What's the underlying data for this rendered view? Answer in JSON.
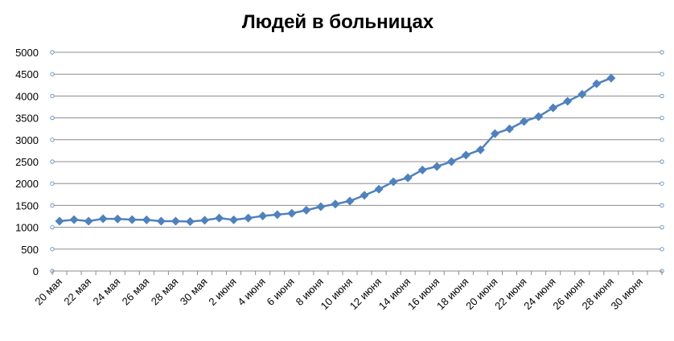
{
  "chart_data": {
    "type": "line",
    "title": "Людей в больницах",
    "categories": [
      "20 мая",
      null,
      "22 мая",
      null,
      "24 мая",
      null,
      "26 мая",
      null,
      "28 мая",
      null,
      "30 мая",
      null,
      "2 июня",
      null,
      "4 июня",
      null,
      "6 июня",
      null,
      "8 июня",
      null,
      "10 июня",
      null,
      "12 июня",
      null,
      "14 июня",
      null,
      "16 июня",
      null,
      "18 июня",
      null,
      "20 июня",
      null,
      "22 июня",
      null,
      "24 июня",
      null,
      "26 июня",
      null,
      "28 июня",
      null,
      "30 июня",
      null
    ],
    "series": [
      {
        "name": "Людей в больницах",
        "color": "#4f81bd",
        "values": [
          1140,
          1175,
          1140,
          1195,
          1190,
          1175,
          1170,
          1140,
          1140,
          1130,
          1160,
          1210,
          1170,
          1210,
          1260,
          1290,
          1320,
          1390,
          1470,
          1530,
          1600,
          1730,
          1870,
          2040,
          2130,
          2310,
          2390,
          2500,
          2650,
          2770,
          3140,
          3250,
          3420,
          3530,
          3730,
          3880,
          4040,
          4280,
          4410,
          null,
          null,
          null
        ]
      }
    ],
    "ylim": [
      0,
      5000
    ],
    "yticks": [
      0,
      500,
      1000,
      1500,
      2000,
      2500,
      3000,
      3500,
      4000,
      4500,
      5000
    ],
    "grid": true
  }
}
